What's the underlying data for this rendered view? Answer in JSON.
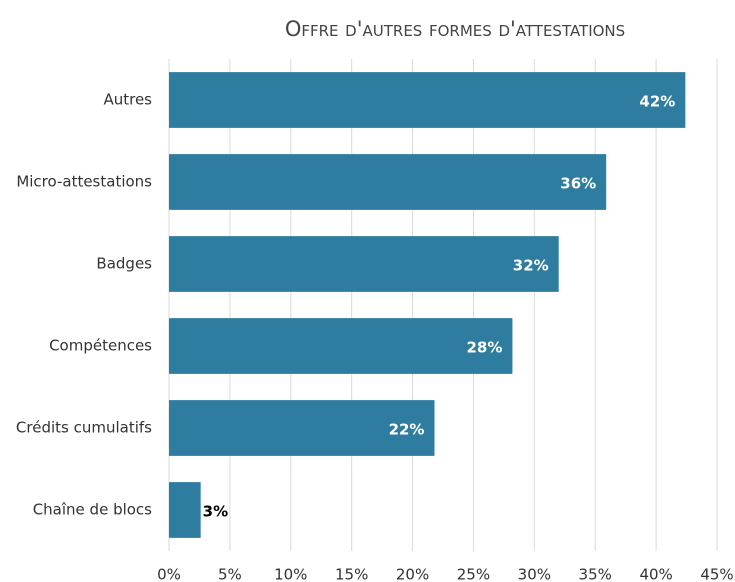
{
  "chart_data": {
    "type": "bar",
    "orientation": "horizontal",
    "title": "Offre d'autres formes d'attestations",
    "categories": [
      "Autres",
      "Micro-attestations",
      "Badges",
      "Compétences",
      "Crédits cumulatifs",
      "Chaîne de blocs"
    ],
    "values": [
      42.4,
      35.9,
      32,
      28.2,
      21.8,
      2.6
    ],
    "value_labels": [
      "42%",
      "36%",
      "32%",
      "28%",
      "22%",
      "3%"
    ],
    "color": "#2e7ca0",
    "xlim": [
      0,
      45
    ],
    "xticks": [
      {
        "value": 0,
        "label": "0%"
      },
      {
        "value": 5,
        "label": "5%"
      },
      {
        "value": 10,
        "label": "10%"
      },
      {
        "value": 15,
        "label": "15%"
      },
      {
        "value": 20,
        "label": "20%"
      },
      {
        "value": 25,
        "label": "25%"
      },
      {
        "value": 30,
        "label": "30%"
      },
      {
        "value": 35,
        "label": "35%"
      },
      {
        "value": 40,
        "label": "40%"
      },
      {
        "value": 45,
        "label": "45%"
      }
    ],
    "grid": true
  }
}
